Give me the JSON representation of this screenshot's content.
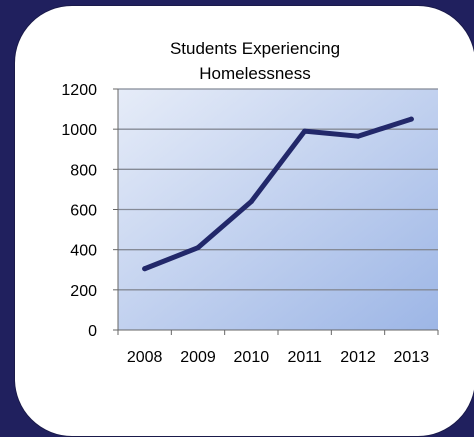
{
  "chart_data": {
    "type": "line",
    "title_lines": [
      "Students Experiencing",
      "Homelessness"
    ],
    "x": [
      "2008",
      "2009",
      "2010",
      "2011",
      "2012",
      "2013"
    ],
    "y_ticks": [
      "0",
      "200",
      "400",
      "600",
      "800",
      "1000",
      "1200"
    ],
    "series": [
      {
        "values": [
          305,
          410,
          640,
          990,
          965,
          1050
        ],
        "color": "#22286a"
      }
    ],
    "ylim": [
      0,
      1200
    ],
    "grid": true,
    "plot_background": [
      "#e6ecf8",
      "#9db6e6"
    ],
    "gridline_color": "#858a96"
  }
}
